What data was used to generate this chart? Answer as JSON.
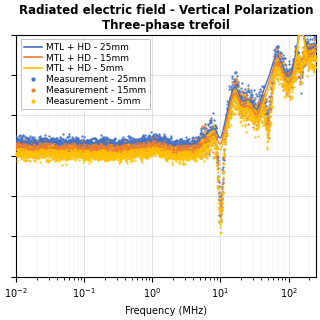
{
  "title_line1": "Radiated electric field - Vertical Polarization",
  "title_line2": "Three-phase trefoil",
  "xlabel": "Frequency (MHz)",
  "colors": [
    "#4472c4",
    "#ed7d31",
    "#ffc000"
  ],
  "legend_labels": [
    "MTL + HD - 25mm",
    "MTL + HD - 15mm",
    "MTL + HD - 5mm",
    "Measurement - 25mm",
    "Measurement - 15mm",
    "Measurement - 5mm"
  ],
  "bg_color": "#ffffff",
  "grid_color": "#e0e0e0",
  "title_fontsize": 8.5,
  "tick_fontsize": 7,
  "legend_fontsize": 6.5
}
